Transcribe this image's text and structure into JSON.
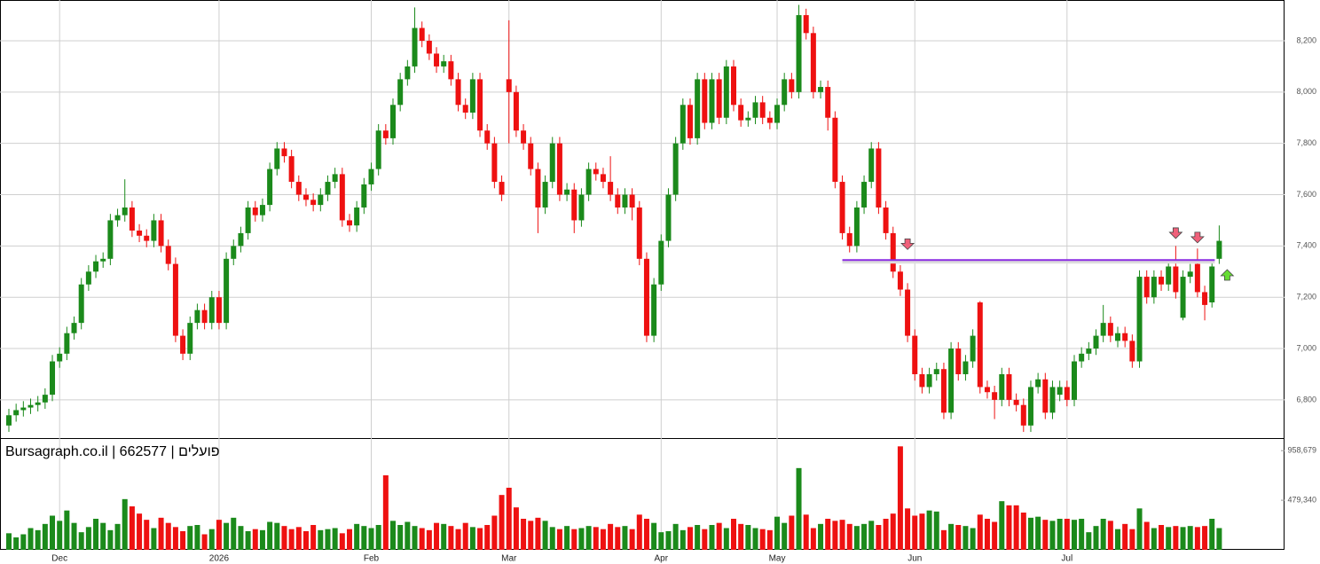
{
  "chart_data": {
    "type": "candlestick",
    "title": "Bursagraph.co.il | 662577 | פועלים",
    "categories": [
      null,
      null,
      null,
      null,
      null,
      null,
      null,
      "Dec",
      null,
      null,
      null,
      null,
      null,
      null,
      null,
      null,
      null,
      null,
      null,
      null,
      null,
      null,
      null,
      null,
      null,
      null,
      null,
      null,
      null,
      "2026",
      null,
      null,
      null,
      null,
      null,
      null,
      null,
      null,
      null,
      null,
      null,
      null,
      null,
      null,
      null,
      null,
      null,
      null,
      null,
      null,
      "Feb",
      null,
      null,
      null,
      null,
      null,
      null,
      null,
      null,
      null,
      null,
      null,
      null,
      null,
      null,
      null,
      null,
      null,
      null,
      "Mar",
      null,
      null,
      null,
      null,
      null,
      null,
      null,
      null,
      null,
      null,
      null,
      null,
      null,
      null,
      null,
      null,
      null,
      null,
      null,
      null,
      "Apr",
      null,
      null,
      null,
      null,
      null,
      null,
      null,
      null,
      null,
      null,
      null,
      null,
      null,
      null,
      null,
      "May",
      null,
      null,
      null,
      null,
      null,
      null,
      null,
      null,
      null,
      null,
      null,
      null,
      null,
      null,
      null,
      null,
      null,
      null,
      "Jun",
      null,
      null,
      null,
      null,
      null,
      null,
      null,
      null,
      null,
      null,
      null,
      null,
      null,
      null,
      null,
      null,
      null,
      null,
      null,
      null,
      "Jul",
      null,
      null,
      null,
      null,
      null,
      null,
      null,
      null,
      null,
      null,
      null,
      null,
      null,
      null,
      null,
      null,
      null,
      null,
      null,
      null,
      null
    ],
    "open": [
      6700,
      6740,
      6760,
      6770,
      6780,
      6790,
      6820,
      6950,
      6980,
      7060,
      7100,
      7250,
      7300,
      7340,
      7350,
      7500,
      7520,
      7550,
      7460,
      7440,
      7420,
      7500,
      7400,
      7330,
      7050,
      6980,
      7100,
      7150,
      7100,
      7200,
      7100,
      7350,
      7400,
      7450,
      7550,
      7520,
      7560,
      7700,
      7780,
      7750,
      7650,
      7600,
      7580,
      7560,
      7600,
      7650,
      7680,
      7500,
      7480,
      7550,
      7640,
      7700,
      7850,
      7820,
      7950,
      8050,
      8100,
      8250,
      8200,
      8150,
      8100,
      8120,
      8050,
      7950,
      7920,
      8050,
      7850,
      7800,
      7650,
      8050,
      8000,
      7850,
      7800,
      7700,
      7550,
      7650,
      7800,
      7600,
      7620,
      7500,
      7600,
      7700,
      7680,
      7650,
      7600,
      7550,
      7600,
      7550,
      7350,
      7050,
      7250,
      7420,
      7600,
      7800,
      7950,
      7820,
      8050,
      7880,
      8050,
      7900,
      8100,
      7950,
      7890,
      7900,
      7960,
      7900,
      7880,
      7950,
      8050,
      8000,
      8300,
      8230,
      8000,
      8020,
      7900,
      7650,
      7450,
      7400,
      7550,
      7650,
      7780,
      7550,
      7450,
      7300,
      7230,
      7050,
      6900,
      6850,
      6900,
      6920,
      6750,
      7000,
      6900,
      6950,
      7180,
      6850,
      6830,
      6800,
      6900,
      6800,
      6780,
      6700,
      6850,
      6880,
      6750,
      6820,
      6850,
      6800,
      6950,
      6980,
      7000,
      7050,
      7100,
      7030,
      7060,
      7030,
      6950,
      7280,
      7200,
      7280,
      7250,
      7320,
      7120,
      7280,
      7330,
      7220,
      7180,
      7350
    ],
    "high": [
      6765,
      6785,
      6795,
      6805,
      6815,
      6845,
      6975,
      7005,
      7085,
      7125,
      7275,
      7325,
      7365,
      7375,
      7525,
      7545,
      7660,
      7575,
      7485,
      7465,
      7525,
      7525,
      7425,
      7355,
      7075,
      7125,
      7175,
      7175,
      7225,
      7225,
      7375,
      7425,
      7475,
      7575,
      7575,
      7585,
      7725,
      7805,
      7805,
      7775,
      7675,
      7625,
      7605,
      7625,
      7675,
      7705,
      7705,
      7525,
      7575,
      7665,
      7725,
      7875,
      7875,
      7975,
      8075,
      8125,
      8330,
      8275,
      8225,
      8175,
      8145,
      8145,
      8075,
      7975,
      8075,
      8075,
      7875,
      7825,
      7675,
      8280,
      8025,
      7875,
      7825,
      7725,
      7675,
      7825,
      7825,
      7645,
      7645,
      7625,
      7725,
      7725,
      7705,
      7750,
      7625,
      7625,
      7625,
      7575,
      7375,
      7275,
      7445,
      7625,
      7825,
      7975,
      7975,
      8075,
      8075,
      8075,
      8075,
      8125,
      8125,
      7975,
      7925,
      7985,
      7985,
      7925,
      7975,
      8075,
      8075,
      8340,
      8325,
      8255,
      8045,
      8045,
      7925,
      7675,
      7475,
      7575,
      7675,
      7805,
      7805,
      7575,
      7475,
      7325,
      7255,
      7075,
      6925,
      6925,
      6945,
      6945,
      7025,
      7025,
      6975,
      7075,
      7185,
      6875,
      6855,
      6925,
      6925,
      6825,
      6805,
      6875,
      6905,
      6905,
      6875,
      6875,
      6875,
      6975,
      7005,
      7025,
      7075,
      7170,
      7125,
      7085,
      7085,
      7055,
      7305,
      7305,
      7305,
      7305,
      7345,
      7400,
      7305,
      7330,
      7390,
      7245,
      7345,
      7480
    ],
    "low": [
      6675,
      6715,
      6735,
      6745,
      6755,
      6765,
      6795,
      6925,
      6955,
      7035,
      7075,
      7225,
      7275,
      7315,
      7325,
      7475,
      7495,
      7435,
      7415,
      7395,
      7395,
      7375,
      7305,
      7025,
      6955,
      6955,
      7075,
      7075,
      7075,
      7075,
      7075,
      7325,
      7375,
      7425,
      7495,
      7495,
      7535,
      7675,
      7725,
      7625,
      7575,
      7555,
      7535,
      7535,
      7575,
      7625,
      7475,
      7455,
      7455,
      7525,
      7615,
      7675,
      7795,
      7795,
      7925,
      8025,
      8075,
      8175,
      8125,
      8075,
      8075,
      8025,
      7925,
      7895,
      7895,
      7825,
      7775,
      7625,
      7575,
      7800,
      7825,
      7775,
      7675,
      7450,
      7525,
      7625,
      7575,
      7575,
      7450,
      7475,
      7575,
      7655,
      7625,
      7575,
      7525,
      7525,
      7500,
      7325,
      7025,
      7025,
      7225,
      7395,
      7575,
      7775,
      7795,
      7795,
      7855,
      7855,
      7875,
      7875,
      7925,
      7865,
      7865,
      7875,
      7875,
      7855,
      7855,
      7925,
      7975,
      7975,
      8205,
      7975,
      7975,
      7850,
      7625,
      7425,
      7375,
      7375,
      7525,
      7625,
      7525,
      7425,
      7275,
      7205,
      7025,
      6875,
      6825,
      6825,
      6875,
      6725,
      6725,
      6875,
      6875,
      6925,
      6825,
      6805,
      6725,
      6775,
      6775,
      6755,
      6675,
      6675,
      6825,
      6725,
      6725,
      6795,
      6775,
      6775,
      6925,
      6955,
      6975,
      7025,
      7025,
      7005,
      7005,
      6925,
      6925,
      7175,
      7175,
      7225,
      7225,
      7195,
      7110,
      7255,
      7200,
      7110,
      7160,
      7330
    ],
    "close": [
      6740,
      6760,
      6770,
      6780,
      6790,
      6820,
      6950,
      6980,
      7060,
      7100,
      7250,
      7300,
      7340,
      7350,
      7500,
      7520,
      7550,
      7460,
      7440,
      7420,
      7500,
      7400,
      7330,
      7050,
      6980,
      7100,
      7150,
      7100,
      7200,
      7100,
      7350,
      7400,
      7450,
      7550,
      7520,
      7560,
      7700,
      7780,
      7750,
      7650,
      7600,
      7580,
      7560,
      7600,
      7650,
      7680,
      7500,
      7480,
      7550,
      7640,
      7700,
      7850,
      7820,
      7950,
      8050,
      8100,
      8250,
      8200,
      8150,
      8100,
      8120,
      8050,
      7950,
      7920,
      8050,
      7850,
      7800,
      7650,
      7600,
      8000,
      7850,
      7800,
      7700,
      7550,
      7650,
      7800,
      7600,
      7620,
      7500,
      7600,
      7700,
      7680,
      7650,
      7600,
      7550,
      7600,
      7550,
      7350,
      7050,
      7250,
      7420,
      7600,
      7800,
      7950,
      7820,
      8050,
      7880,
      8050,
      7900,
      8100,
      7950,
      7890,
      7900,
      7960,
      7900,
      7880,
      7950,
      8050,
      8000,
      8300,
      8230,
      8000,
      8020,
      7900,
      7650,
      7450,
      7400,
      7550,
      7650,
      7780,
      7550,
      7450,
      7300,
      7230,
      7050,
      6900,
      6850,
      6900,
      6920,
      6750,
      7000,
      6900,
      6950,
      7050,
      6850,
      6830,
      6800,
      6900,
      6800,
      6780,
      6700,
      6850,
      6880,
      6750,
      6850,
      6850,
      6800,
      6950,
      6980,
      7000,
      7050,
      7100,
      7050,
      7060,
      7030,
      6950,
      7280,
      7200,
      7280,
      7250,
      7320,
      7220,
      7280,
      7300,
      7220,
      7170,
      7320,
      7420
    ],
    "volume": [
      160000,
      120000,
      150000,
      210000,
      190000,
      250000,
      330000,
      280000,
      380000,
      260000,
      170000,
      220000,
      300000,
      260000,
      190000,
      250000,
      490000,
      420000,
      350000,
      290000,
      210000,
      310000,
      260000,
      220000,
      180000,
      230000,
      240000,
      150000,
      200000,
      290000,
      260000,
      310000,
      230000,
      180000,
      200000,
      190000,
      270000,
      260000,
      230000,
      200000,
      220000,
      180000,
      240000,
      190000,
      200000,
      210000,
      160000,
      200000,
      250000,
      230000,
      210000,
      240000,
      720000,
      280000,
      240000,
      270000,
      230000,
      210000,
      190000,
      260000,
      250000,
      230000,
      200000,
      260000,
      220000,
      210000,
      240000,
      330000,
      530000,
      600000,
      410000,
      300000,
      280000,
      310000,
      280000,
      220000,
      200000,
      230000,
      200000,
      210000,
      230000,
      220000,
      200000,
      250000,
      220000,
      230000,
      200000,
      340000,
      300000,
      260000,
      170000,
      180000,
      250000,
      190000,
      220000,
      240000,
      200000,
      240000,
      260000,
      210000,
      300000,
      250000,
      240000,
      210000,
      200000,
      190000,
      320000,
      260000,
      330000,
      790000,
      340000,
      210000,
      250000,
      300000,
      280000,
      290000,
      250000,
      230000,
      250000,
      280000,
      240000,
      300000,
      350000,
      1000000,
      400000,
      330000,
      350000,
      380000,
      370000,
      190000,
      250000,
      240000,
      230000,
      210000,
      340000,
      300000,
      270000,
      470000,
      430000,
      430000,
      360000,
      310000,
      320000,
      290000,
      280000,
      300000,
      300000,
      290000,
      300000,
      170000,
      230000,
      300000,
      280000,
      200000,
      250000,
      200000,
      400000,
      270000,
      210000,
      240000,
      220000,
      230000,
      220000,
      230000,
      220000,
      230000,
      300000,
      210000
    ],
    "up_color": "#1b8a1b",
    "down_color": "#ee1111",
    "ylim": [
      6651,
      8359
    ],
    "yticks": [
      {
        "value": 6800,
        "label": "6,800"
      },
      {
        "value": 7000,
        "label": "7,000"
      },
      {
        "value": 7200,
        "label": "7,200"
      },
      {
        "value": 7400,
        "label": "7,400"
      },
      {
        "value": 7600,
        "label": "7,600"
      },
      {
        "value": 7800,
        "label": "7,800"
      },
      {
        "value": 8000,
        "label": "8,000"
      },
      {
        "value": 8200,
        "label": "8,200"
      }
    ],
    "volume_ylim": [
      0,
      1080000
    ],
    "volume_yticks": [
      {
        "value": 479340,
        "label": "479,340"
      },
      {
        "value": 958679,
        "label": "958,679"
      }
    ],
    "grid": true,
    "level": {
      "value": 7345,
      "from": 115,
      "color": "#8a2be2"
    },
    "signals": [
      {
        "index": 124,
        "direction": "down",
        "value": 7400,
        "color": "#f0607a"
      },
      {
        "index": 161,
        "direction": "down",
        "value": 7443,
        "color": "#f0607a"
      },
      {
        "index": 164,
        "direction": "down",
        "value": 7426,
        "color": "#f0607a"
      },
      {
        "index": 167,
        "direction": "up",
        "value": 7294,
        "color": "#66dd33"
      }
    ]
  }
}
